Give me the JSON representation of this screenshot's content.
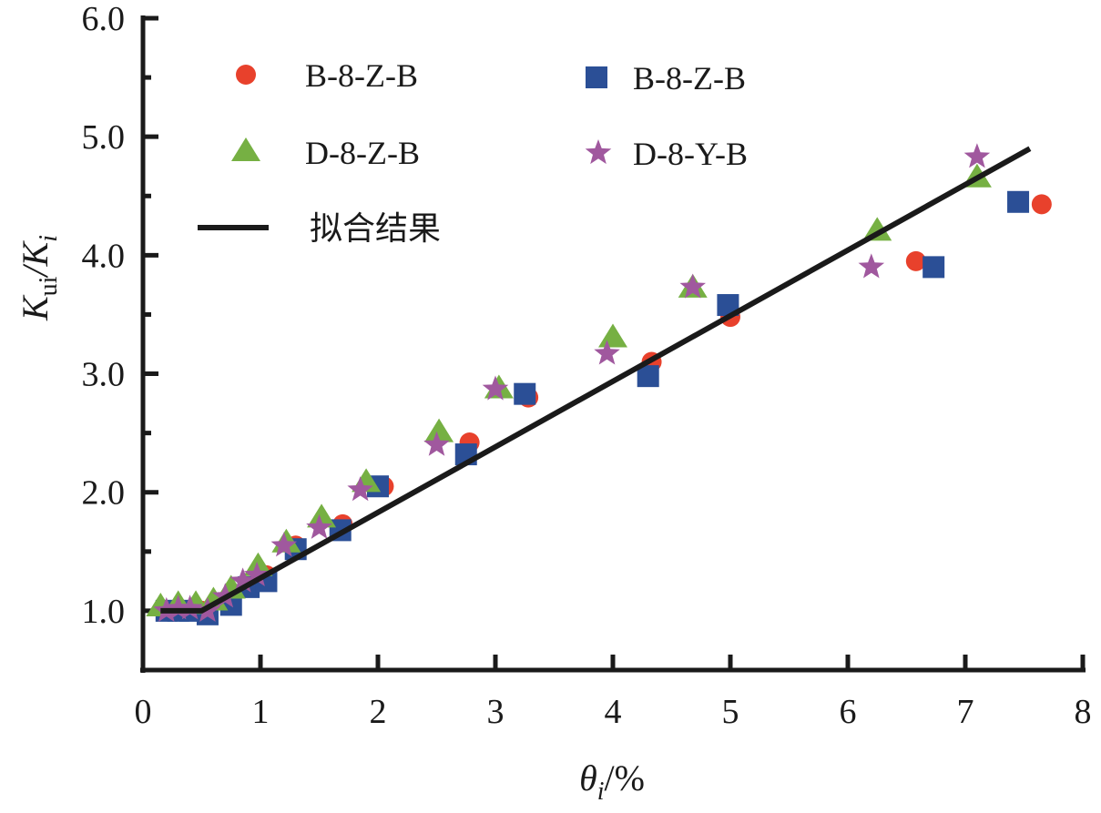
{
  "chart_data": {
    "type": "scatter",
    "title": "",
    "xlabel": "θi/%",
    "ylabel": "Kui/Ki",
    "xlabel_parts": {
      "main": "θ",
      "sub": "i",
      "suffix": "/%"
    },
    "ylabel_parts": {
      "k1": "K",
      "sub1": "ui",
      "slash": "/",
      "k2": "K",
      "sub2": "i"
    },
    "xlim": [
      0,
      8
    ],
    "ylim": [
      0.5,
      6.0
    ],
    "xticks": [
      0,
      1,
      2,
      3,
      4,
      5,
      6,
      7,
      8
    ],
    "xtick_labels": [
      "0",
      "1",
      "2",
      "3",
      "4",
      "5",
      "6",
      "7",
      "8"
    ],
    "yticks": [
      1.0,
      2.0,
      3.0,
      4.0,
      5.0,
      6.0
    ],
    "ytick_labels": [
      "1.0",
      "2.0",
      "3.0",
      "4.0",
      "5.0",
      "6.0"
    ],
    "yminor_ticks": [
      1.5,
      2.5,
      3.5,
      4.5,
      5.5
    ],
    "grid": false,
    "legend_position": "top-left",
    "series": [
      {
        "name": "B-8-Z-B",
        "marker": "circle",
        "color": "#e8412c",
        "x": [
          0.2,
          0.3,
          0.4,
          0.5,
          0.75,
          0.9,
          1.05,
          1.3,
          1.7,
          2.05,
          2.78,
          3.28,
          4.33,
          5.0,
          6.58,
          7.65
        ],
        "y": [
          1.0,
          1.0,
          1.0,
          1.0,
          1.1,
          1.2,
          1.3,
          1.55,
          1.73,
          2.05,
          2.42,
          2.8,
          3.1,
          3.48,
          3.95,
          4.43
        ]
      },
      {
        "name": "B-8-Z-B",
        "marker": "square",
        "color": "#2b4f96",
        "x": [
          0.2,
          0.3,
          0.4,
          0.55,
          0.75,
          0.9,
          1.05,
          1.3,
          1.68,
          2.0,
          2.75,
          3.25,
          4.3,
          4.98,
          6.73,
          7.45
        ],
        "y": [
          1.0,
          1.0,
          1.0,
          0.97,
          1.05,
          1.2,
          1.25,
          1.52,
          1.68,
          2.05,
          2.32,
          2.83,
          2.98,
          3.58,
          3.9,
          4.45
        ]
      },
      {
        "name": "D-8-Z-B",
        "marker": "triangle",
        "color": "#76b043",
        "x": [
          0.15,
          0.3,
          0.45,
          0.6,
          0.75,
          0.98,
          1.22,
          1.52,
          1.9,
          2.52,
          3.03,
          4.0,
          4.68,
          6.25,
          7.1
        ],
        "y": [
          1.03,
          1.05,
          1.05,
          1.08,
          1.18,
          1.37,
          1.57,
          1.78,
          2.08,
          2.5,
          2.87,
          3.3,
          3.72,
          4.2,
          4.65
        ]
      },
      {
        "name": "D-8-Y-B",
        "marker": "star",
        "color": "#a0589e",
        "x": [
          0.2,
          0.3,
          0.4,
          0.55,
          0.7,
          0.85,
          0.97,
          1.2,
          1.5,
          1.85,
          2.5,
          3.0,
          3.95,
          4.68,
          6.2,
          7.1
        ],
        "y": [
          1.0,
          1.02,
          1.02,
          1.0,
          1.12,
          1.25,
          1.3,
          1.55,
          1.7,
          2.02,
          2.4,
          2.87,
          3.17,
          3.73,
          3.9,
          4.83
        ]
      }
    ],
    "fit_line": {
      "name": "拟合结果",
      "color": "#1a1a1a",
      "x": [
        0.15,
        0.5,
        7.55
      ],
      "y": [
        1.0,
        1.0,
        4.9
      ]
    }
  }
}
